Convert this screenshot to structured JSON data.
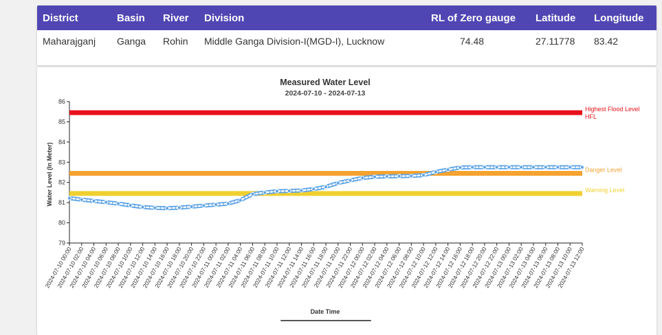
{
  "table": {
    "headers": [
      "District",
      "Basin",
      "River",
      "Division",
      "RL of Zero gauge",
      "Latitude",
      "Longitude"
    ],
    "row": [
      "Maharajganj",
      "Ganga",
      "Rohin",
      "Middle Ganga Division-I(MGD-I), Lucknow",
      "74.48",
      "27.11778",
      "83.42"
    ]
  },
  "chart_data": {
    "type": "line",
    "title": "Measured Water Level",
    "subtitle": "2024-07-10 - 2024-07-13",
    "xlabel": "Date Time",
    "ylabel": "Water Level (In Meter)",
    "ylim": [
      79,
      86
    ],
    "yticks": [
      "79",
      "80",
      "81",
      "82",
      "83",
      "84",
      "85",
      "86"
    ],
    "grid": false,
    "categories": [
      "2024-07-10 00:00",
      "2024-07-10 02:00",
      "2024-07-10 04:00",
      "2024-07-10 06:00",
      "2024-07-10 08:00",
      "2024-07-10 10:00",
      "2024-07-10 12:00",
      "2024-07-10 14:00",
      "2024-07-10 16:00",
      "2024-07-10 18:00",
      "2024-07-10 20:00",
      "2024-07-10 22:00",
      "2024-07-11 00:00",
      "2024-07-11 02:00",
      "2024-07-11 04:00",
      "2024-07-11 06:00",
      "2024-07-11 08:00",
      "2024-07-11 10:00",
      "2024-07-11 12:00",
      "2024-07-11 14:00",
      "2024-07-11 16:00",
      "2024-07-11 18:00",
      "2024-07-11 20:00",
      "2024-07-11 22:00",
      "2024-07-12 00:00",
      "2024-07-12 02:00",
      "2024-07-12 04:00",
      "2024-07-12 06:00",
      "2024-07-12 08:00",
      "2024-07-12 10:00",
      "2024-07-12 12:00",
      "2024-07-12 14:00",
      "2024-07-12 16:00",
      "2024-07-12 18:00",
      "2024-07-12 20:00",
      "2024-07-12 22:00",
      "2024-07-13 00:00",
      "2024-07-13 02:00",
      "2024-07-13 04:00",
      "2024-07-13 06:00",
      "2024-07-13 08:00",
      "2024-07-13 10:00",
      "2024-07-13 12:00"
    ],
    "series": [
      {
        "values": [
          81.22,
          81.15,
          81.08,
          81.02,
          80.95,
          80.86,
          80.78,
          80.74,
          80.72,
          80.75,
          80.8,
          80.85,
          80.9,
          80.95,
          81.12,
          81.42,
          81.5,
          81.56,
          81.58,
          81.6,
          81.67,
          81.78,
          81.97,
          82.1,
          82.22,
          82.28,
          82.3,
          82.31,
          82.32,
          82.36,
          82.52,
          82.63,
          82.74,
          82.75,
          82.75,
          82.75,
          82.75,
          82.75,
          82.75,
          82.75,
          82.75,
          82.75,
          82.75
        ],
        "color": "#5da3e6"
      }
    ],
    "reference_lines": [
      {
        "value": 85.45,
        "labels": [
          "Highest Flood Level",
          "HFL"
        ],
        "color": "#e8101a"
      },
      {
        "value": 82.45,
        "labels": [
          "Danger Level"
        ],
        "color": "#f5a230"
      },
      {
        "value": 81.45,
        "labels": [
          "Warning Level"
        ],
        "color": "#f0d030"
      }
    ]
  }
}
